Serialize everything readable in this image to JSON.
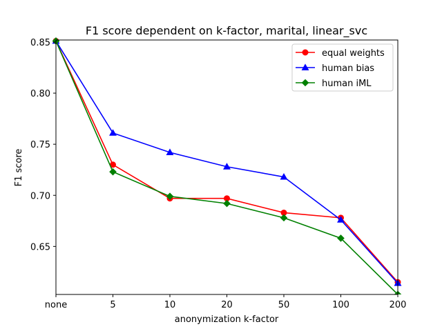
{
  "chart_data": {
    "type": "line",
    "title": "F1 score dependent on k-factor, marital, linear_svc",
    "xlabel": "anonymization k-factor",
    "ylabel": "F1 score",
    "categories": [
      "none",
      "5",
      "10",
      "20",
      "50",
      "100",
      "200"
    ],
    "ylim": [
      0.603,
      0.852
    ],
    "yticks": [
      0.65,
      0.7,
      0.75,
      0.8,
      0.85
    ],
    "ytick_labels": [
      "0.65",
      "0.70",
      "0.75",
      "0.80",
      "0.85"
    ],
    "grid": false,
    "legend_position": "upper right",
    "series": [
      {
        "name": "equal weights",
        "color": "#ff0000",
        "marker": "circle",
        "values": [
          0.851,
          0.73,
          0.697,
          0.697,
          0.683,
          0.678,
          0.615
        ]
      },
      {
        "name": "human bias",
        "color": "#0000ff",
        "marker": "triangle",
        "values": [
          0.851,
          0.761,
          0.742,
          0.728,
          0.718,
          0.676,
          0.614
        ]
      },
      {
        "name": "human iML",
        "color": "#008000",
        "marker": "diamond",
        "values": [
          0.851,
          0.723,
          0.699,
          0.692,
          0.678,
          0.658,
          0.603
        ]
      }
    ]
  }
}
